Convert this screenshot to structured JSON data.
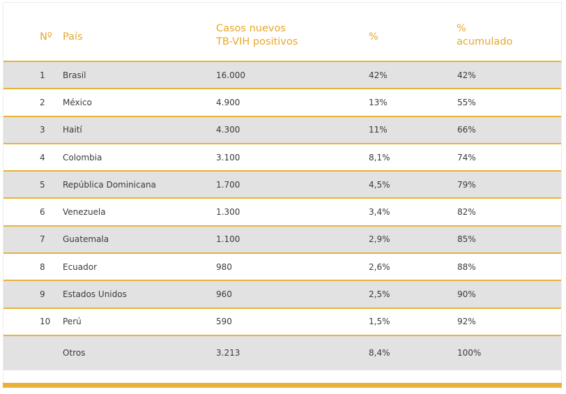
{
  "header": {
    "num": "Nº",
    "country": "País",
    "cases_line1": "Casos nuevos",
    "cases_line2": "TB-VIH positivos",
    "pct": "%",
    "cum_line1": "%",
    "cum_line2": "acumulado"
  },
  "rows": [
    {
      "num": "1",
      "country": "Brasil",
      "cases": "16.000",
      "pct": "42%",
      "cum": "42%"
    },
    {
      "num": "2",
      "country": "México",
      "cases": "4.900",
      "pct": "13%",
      "cum": "55%"
    },
    {
      "num": "3",
      "country": "Haití",
      "cases": "4.300",
      "pct": "11%",
      "cum": "66%"
    },
    {
      "num": "4",
      "country": "Colombia",
      "cases": "3.100",
      "pct": "8,1%",
      "cum": "74%"
    },
    {
      "num": "5",
      "country": "República Dominicana",
      "cases": "1.700",
      "pct": "4,5%",
      "cum": "79%"
    },
    {
      "num": "6",
      "country": "Venezuela",
      "cases": "1.300",
      "pct": "3,4%",
      "cum": "82%"
    },
    {
      "num": "7",
      "country": "Guatemala",
      "cases": "1.100",
      "pct": "2,9%",
      "cum": "85%"
    },
    {
      "num": "8",
      "country": "Ecuador",
      "cases": "980",
      "pct": "2,6%",
      "cum": "88%"
    },
    {
      "num": "9",
      "country": "Estados Unidos",
      "cases": "960",
      "pct": "2,5%",
      "cum": "90%"
    },
    {
      "num": "10",
      "country": "Perú",
      "cases": "590",
      "pct": "1,5%",
      "cum": "92%"
    },
    {
      "num": "",
      "country": "Otros",
      "cases": "3.213",
      "pct": "8,4%",
      "cum": "100%"
    }
  ],
  "colors": {
    "accent": "#e8b23a",
    "header_text": "#e8a72a",
    "row_grey": "#e2e2e3",
    "body_text": "#3a3a3a"
  }
}
